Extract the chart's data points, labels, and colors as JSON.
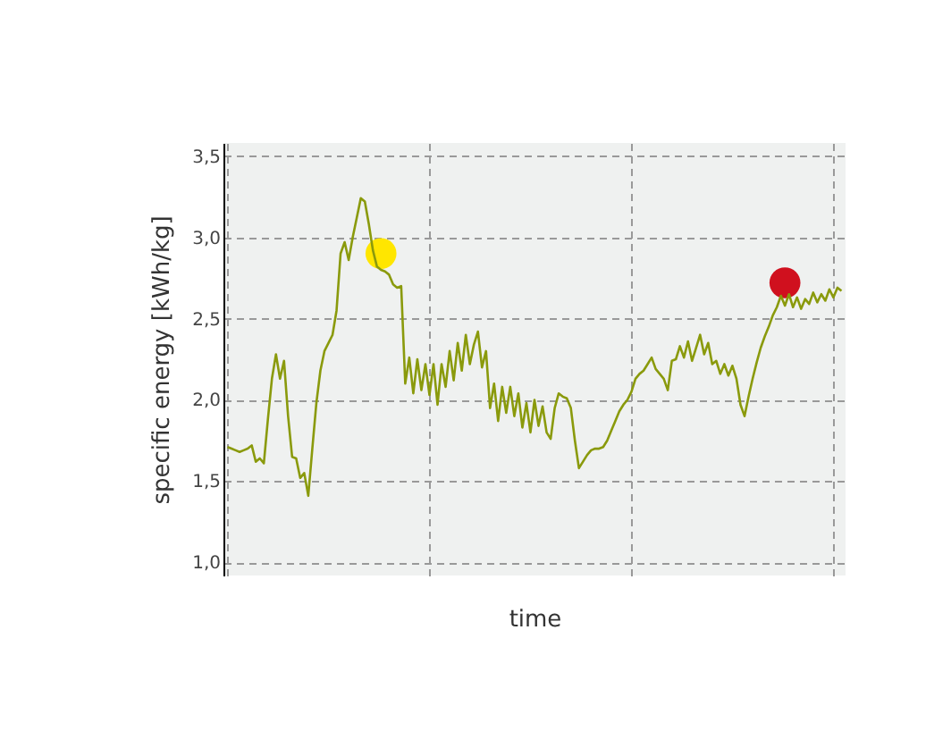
{
  "chart_data": {
    "type": "line",
    "xlabel": "time",
    "ylabel": "specific energy [kWh/kg]",
    "categories": [
      null,
      null,
      null,
      null,
      null,
      null,
      null,
      null,
      null,
      null,
      null,
      null,
      null,
      null,
      null,
      null,
      null,
      null,
      null,
      null,
      null,
      null,
      null,
      null,
      null,
      null,
      null,
      null,
      null,
      null,
      null,
      null,
      null,
      null,
      null,
      null,
      null,
      null,
      null,
      null,
      null,
      null,
      null,
      null,
      null,
      null,
      null,
      null,
      null,
      null,
      null,
      null,
      null,
      null,
      null,
      null,
      null,
      null,
      null,
      null,
      null,
      null,
      null,
      null,
      null,
      null,
      null,
      null,
      null,
      null,
      null,
      null,
      null,
      null,
      null,
      null,
      null,
      null,
      null,
      null,
      null,
      null,
      null,
      null,
      null,
      null,
      null,
      null,
      null,
      null,
      null,
      null,
      null,
      null,
      null,
      null,
      null,
      null,
      null,
      null,
      null,
      null,
      null,
      null,
      null,
      null,
      null,
      null,
      null,
      null,
      null,
      null,
      null,
      null,
      null,
      null,
      null,
      null,
      null,
      null,
      null,
      null,
      null,
      null,
      null,
      null,
      null,
      null,
      null,
      null,
      null,
      null,
      null,
      null,
      null,
      null,
      null,
      null,
      null,
      null,
      null,
      null,
      null,
      null,
      null,
      null,
      null,
      null,
      null,
      null,
      null,
      null,
      null
    ],
    "ylim": [
      0.92,
      3.58
    ],
    "yticks": [
      {
        "value": 1.0,
        "label": "1,0"
      },
      {
        "value": 1.5,
        "label": "1,5"
      },
      {
        "value": 2.0,
        "label": "2,0"
      },
      {
        "value": 2.5,
        "label": "2,5"
      },
      {
        "value": 3.0,
        "label": "3,0"
      },
      {
        "value": 3.5,
        "label": "3,5"
      }
    ],
    "grid": true,
    "tick_labels": "y",
    "series": [
      {
        "color": "#8a9a0c",
        "marker": "none",
        "line_style": "solid",
        "values": [
          1.71,
          1.7,
          1.69,
          1.68,
          1.69,
          1.7,
          1.72,
          1.62,
          1.64,
          1.61,
          1.88,
          2.13,
          2.28,
          2.13,
          2.24,
          1.9,
          1.65,
          1.64,
          1.52,
          1.55,
          1.41,
          1.7,
          1.98,
          2.18,
          2.3,
          2.35,
          2.4,
          2.55,
          2.9,
          2.97,
          2.86,
          3.0,
          3.12,
          3.24,
          3.22,
          3.08,
          2.92,
          2.82,
          2.8,
          2.79,
          2.77,
          2.71,
          2.69,
          2.7,
          2.1,
          2.26,
          2.04,
          2.25,
          2.06,
          2.22,
          2.03,
          2.22,
          1.97,
          2.22,
          2.08,
          2.3,
          2.12,
          2.35,
          2.18,
          2.4,
          2.22,
          2.34,
          2.42,
          2.2,
          2.3,
          1.95,
          2.1,
          1.87,
          2.08,
          1.92,
          2.08,
          1.9,
          2.04,
          1.83,
          1.98,
          1.8,
          2.0,
          1.84,
          1.96,
          1.8,
          1.76,
          1.95,
          2.04,
          2.02,
          2.01,
          1.95,
          1.75,
          1.58,
          1.62,
          1.66,
          1.69,
          1.7,
          1.7,
          1.71,
          1.75,
          1.81,
          1.87,
          1.93,
          1.97,
          2.0,
          2.05,
          2.13,
          2.16,
          2.18,
          2.22,
          2.26,
          2.19,
          2.16,
          2.13,
          2.06,
          2.24,
          2.25,
          2.33,
          2.26,
          2.36,
          2.24,
          2.32,
          2.4,
          2.28,
          2.35,
          2.22,
          2.24,
          2.16,
          2.22,
          2.15,
          2.21,
          2.13,
          1.97,
          1.9,
          2.02,
          2.13,
          2.23,
          2.32,
          2.39,
          2.45,
          2.52,
          2.57,
          2.64,
          2.58,
          2.65,
          2.57,
          2.63,
          2.56,
          2.62,
          2.59,
          2.66,
          2.6,
          2.65,
          2.61,
          2.68,
          2.63,
          2.69,
          2.67
        ]
      },
      {
        "type": "scatter",
        "color": "#ffe600",
        "marker": "circle",
        "values": [
          null,
          null,
          null,
          null,
          null,
          null,
          null,
          null,
          null,
          null,
          null,
          null,
          null,
          null,
          null,
          null,
          null,
          null,
          null,
          null,
          null,
          null,
          null,
          null,
          null,
          null,
          null,
          null,
          null,
          null,
          null,
          null,
          null,
          null,
          null,
          null,
          null,
          null,
          2.9,
          null,
          null,
          null,
          null,
          null,
          null,
          null,
          null,
          null,
          null,
          null,
          null,
          null,
          null,
          null,
          null,
          null,
          null,
          null,
          null,
          null,
          null,
          null,
          null,
          null,
          null,
          null,
          null,
          null,
          null,
          null,
          null,
          null,
          null,
          null,
          null,
          null,
          null,
          null,
          null,
          null,
          null,
          null,
          null,
          null,
          null,
          null,
          null,
          null,
          null,
          null,
          null,
          null,
          null,
          null,
          null,
          null,
          null,
          null,
          null,
          null,
          null,
          null,
          null,
          null,
          null,
          null,
          null,
          null,
          null,
          null,
          null,
          null,
          null,
          null,
          null,
          null,
          null,
          null,
          null,
          null,
          null,
          null,
          null,
          null,
          null,
          null,
          null,
          null,
          null,
          null,
          null,
          null,
          null,
          null,
          null,
          null,
          null,
          null,
          null,
          null,
          null,
          null,
          null,
          null,
          null,
          null,
          null,
          null,
          null,
          null,
          null,
          null,
          null
        ]
      },
      {
        "type": "scatter",
        "color": "#d0101e",
        "marker": "circle",
        "values": [
          null,
          null,
          null,
          null,
          null,
          null,
          null,
          null,
          null,
          null,
          null,
          null,
          null,
          null,
          null,
          null,
          null,
          null,
          null,
          null,
          null,
          null,
          null,
          null,
          null,
          null,
          null,
          null,
          null,
          null,
          null,
          null,
          null,
          null,
          null,
          null,
          null,
          null,
          null,
          null,
          null,
          null,
          null,
          null,
          null,
          null,
          null,
          null,
          null,
          null,
          null,
          null,
          null,
          null,
          null,
          null,
          null,
          null,
          null,
          null,
          null,
          null,
          null,
          null,
          null,
          null,
          null,
          null,
          null,
          null,
          null,
          null,
          null,
          null,
          null,
          null,
          null,
          null,
          null,
          null,
          null,
          null,
          null,
          null,
          null,
          null,
          null,
          null,
          null,
          null,
          null,
          null,
          null,
          null,
          null,
          null,
          null,
          null,
          null,
          null,
          null,
          null,
          null,
          null,
          null,
          null,
          null,
          null,
          null,
          null,
          null,
          null,
          null,
          null,
          null,
          null,
          null,
          null,
          null,
          null,
          null,
          null,
          null,
          null,
          null,
          null,
          null,
          null,
          null,
          null,
          null,
          null,
          null,
          null,
          null,
          null,
          null,
          null,
          2.72,
          null,
          null,
          null,
          null,
          null,
          null,
          null,
          null,
          null,
          null,
          null,
          null,
          null,
          null
        ]
      }
    ]
  }
}
